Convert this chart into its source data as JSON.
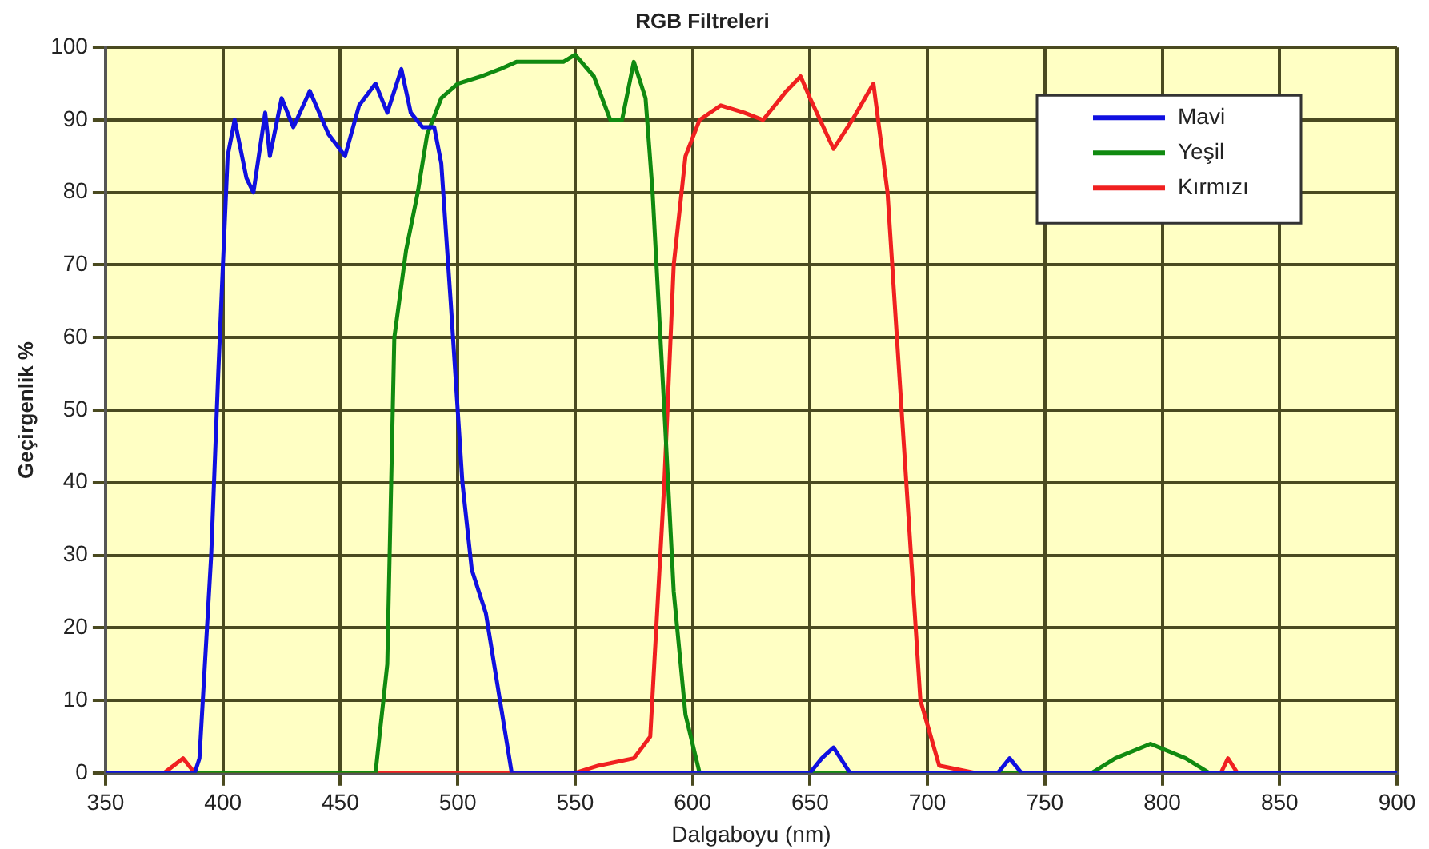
{
  "chart_data": {
    "type": "line",
    "title": "RGB Filtreleri",
    "xlabel": "Dalgaboyu (nm)",
    "ylabel": "Geçirgenlik %",
    "xlim": [
      350,
      900
    ],
    "xticks": [
      350,
      400,
      450,
      500,
      550,
      600,
      650,
      700,
      750,
      800,
      850,
      900
    ],
    "ylim": [
      0,
      100
    ],
    "yticks": [
      0,
      10,
      20,
      30,
      40,
      50,
      60,
      70,
      80,
      90,
      100
    ],
    "grid": true,
    "legend": "top right",
    "marker": "none",
    "line_style": "solid",
    "series": [
      {
        "name": "Mavi",
        "color": "#1010e0",
        "x": [
          350,
          388,
          390,
          395,
          398,
          402,
          405,
          410,
          413,
          418,
          420,
          425,
          430,
          437,
          445,
          452,
          458,
          465,
          470,
          476,
          480,
          485,
          490,
          493,
          497,
          502,
          506,
          512,
          518,
          523,
          650,
          655,
          660,
          667,
          730,
          735,
          740,
          900
        ],
        "values": [
          0,
          0,
          2,
          30,
          55,
          85,
          90,
          82,
          80,
          91,
          85,
          93,
          89,
          94,
          88,
          85,
          92,
          95,
          91,
          97,
          91,
          89,
          89,
          84,
          65,
          40,
          28,
          22,
          10,
          0,
          0,
          2,
          3.5,
          0,
          0,
          2,
          0,
          0
        ]
      },
      {
        "name": "Yeşil",
        "color": "#108a10",
        "x": [
          350,
          465,
          470,
          473,
          478,
          483,
          487,
          493,
          500,
          510,
          518,
          525,
          545,
          550,
          558,
          565,
          570,
          575,
          580,
          583,
          588,
          592,
          597,
          603,
          770,
          780,
          795,
          810,
          820,
          900
        ],
        "values": [
          0,
          0,
          15,
          60,
          72,
          80,
          88,
          93,
          95,
          96,
          97,
          98,
          98,
          99,
          96,
          90,
          90,
          98,
          93,
          80,
          50,
          25,
          8,
          0,
          0,
          2,
          4,
          2,
          0,
          0
        ]
      },
      {
        "name": "Kırmızı",
        "color": "#f02020",
        "x": [
          350,
          375,
          383,
          388,
          550,
          560,
          575,
          582,
          588,
          592,
          597,
          603,
          612,
          622,
          630,
          640,
          646,
          650,
          660,
          668,
          677,
          683,
          690,
          697,
          705,
          720,
          825,
          828,
          832,
          900
        ],
        "values": [
          0,
          0,
          2,
          0,
          0,
          1,
          2,
          5,
          40,
          70,
          85,
          90,
          92,
          91,
          90,
          94,
          96,
          93,
          86,
          90,
          95,
          80,
          45,
          10,
          1,
          0,
          0,
          2,
          0,
          0
        ]
      }
    ]
  }
}
